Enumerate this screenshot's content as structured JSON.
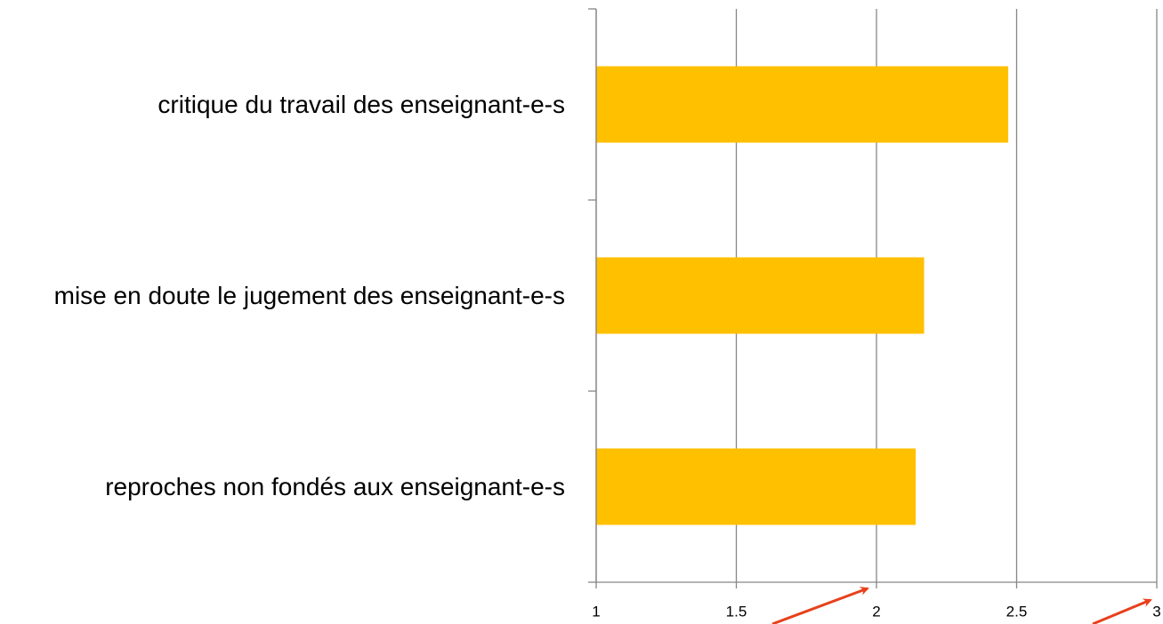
{
  "chart_data": {
    "type": "barh",
    "categories": [
      "critique du travail des enseignant-e-s",
      "mise en doute le jugement des enseignant-e-s",
      "reproches non fondés aux enseignant-e-s"
    ],
    "values": [
      2.47,
      2.17,
      2.14
    ],
    "color": "#ffc000",
    "xlim": [
      1,
      3
    ],
    "xticks": [
      1,
      1.5,
      2,
      2.5,
      3
    ],
    "grid": true
  }
}
